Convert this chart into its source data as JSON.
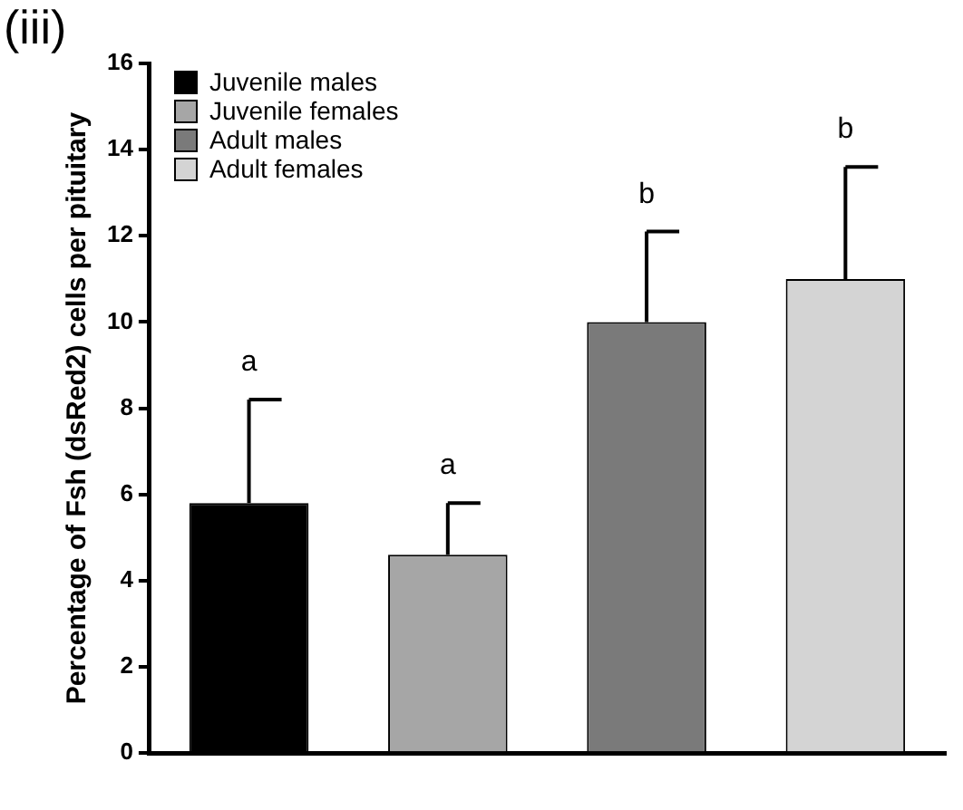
{
  "chart_data": {
    "type": "bar",
    "title": "(iii)",
    "ylabel": "Percentage of Fsh (dsRed2) cells per pituitary",
    "categories": [
      null,
      null,
      null,
      null
    ],
    "series": [
      {
        "name": "Juvenile males",
        "color": "#000000",
        "values": [
          5.8,
          null,
          null,
          null
        ],
        "errors": [
          [
            5.8,
            8.2
          ],
          null,
          null,
          null
        ]
      },
      {
        "name": "Juvenile females",
        "color": "#a6a6a6",
        "values": [
          null,
          4.6,
          null,
          null
        ],
        "errors": [
          null,
          [
            4.6,
            5.8
          ],
          null,
          null
        ]
      },
      {
        "name": "Adult males",
        "color": "#7a7a7a",
        "values": [
          null,
          null,
          10.0,
          null
        ],
        "errors": [
          null,
          null,
          [
            10.0,
            12.1
          ],
          null
        ]
      },
      {
        "name": "Adult females",
        "color": "#d4d4d4",
        "values": [
          null,
          null,
          null,
          11.0
        ],
        "errors": [
          null,
          null,
          null,
          [
            11.0,
            13.6
          ]
        ]
      }
    ],
    "annotations": [
      "a",
      "a",
      "b",
      "b"
    ],
    "ylim": [
      0,
      16
    ],
    "yticks": [
      0,
      2,
      4,
      6,
      8,
      10,
      12,
      14,
      16
    ],
    "grid": false,
    "legend": "top left"
  }
}
